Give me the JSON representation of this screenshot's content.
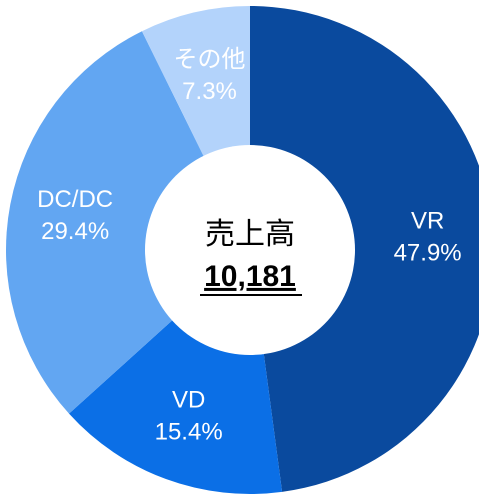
{
  "chart_data": {
    "type": "donut",
    "categories": [
      "VR",
      "VD",
      "DC/DC",
      "その他"
    ],
    "values": [
      47.9,
      15.4,
      29.4,
      7.3
    ],
    "value_labels": [
      "47.9%",
      "15.4%",
      "29.4%",
      "7.3%"
    ],
    "colors": [
      "#0a4a9e",
      "#0b6fe6",
      "#62a6f2",
      "#b3d3fb"
    ],
    "center_title": "売上高",
    "center_value": "10,181"
  }
}
